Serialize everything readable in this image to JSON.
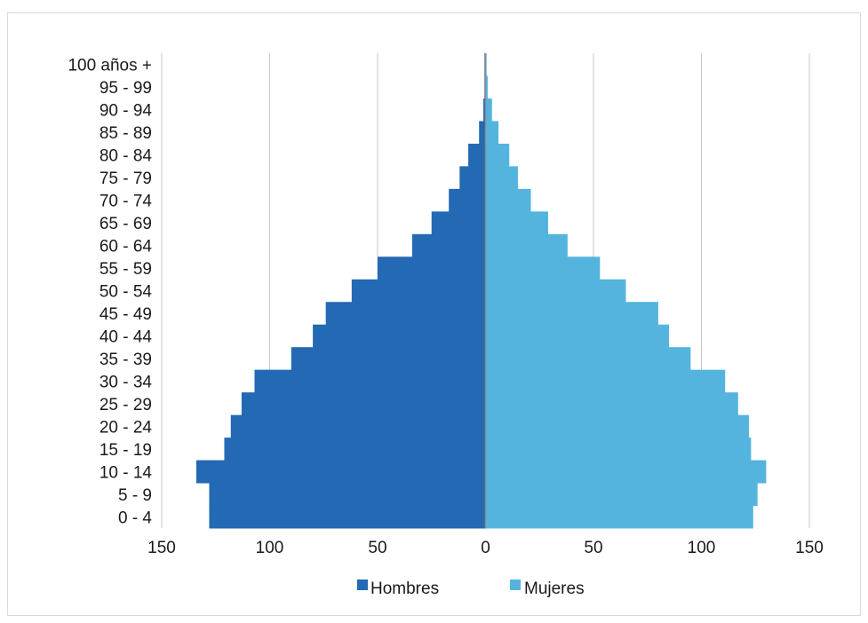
{
  "chart_data": {
    "type": "bar",
    "orientation": "horizontal",
    "categories": [
      "0 - 4",
      "5 - 9",
      "10 - 14",
      "15 - 19",
      "20 - 24",
      "25 - 29",
      "30 - 34",
      "35 - 39",
      "40 - 44",
      "45 - 49",
      "50 - 54",
      "55 - 59",
      "60 - 64",
      "65 - 69",
      "70 - 74",
      "75 - 79",
      "80 - 84",
      "85 - 89",
      "90 - 94",
      "95 - 99",
      "100 años +"
    ],
    "series": [
      {
        "name": "Hombres",
        "color": "#2369b3",
        "values": [
          -128,
          -128,
          -134,
          -121,
          -118,
          -113,
          -107,
          -90,
          -80,
          -74,
          -62,
          -50,
          -34,
          -25,
          -17,
          -12,
          -8,
          -3,
          -1,
          -0.5,
          -0.5
        ]
      },
      {
        "name": "Mujeres",
        "color": "#54b4de",
        "values": [
          124,
          126,
          130,
          123,
          122,
          117,
          111,
          95,
          85,
          80,
          65,
          53,
          38,
          29,
          21,
          15,
          11,
          6,
          3,
          1,
          0.5
        ]
      }
    ],
    "xlim": [
      -150,
      150
    ],
    "x_ticks": [
      -150,
      -100,
      -50,
      0,
      50,
      100,
      150
    ],
    "x_tick_labels": [
      "150",
      "100",
      "50",
      "0",
      "50",
      "100",
      "150"
    ],
    "grid": "vertical",
    "legend_position": "bottom"
  }
}
